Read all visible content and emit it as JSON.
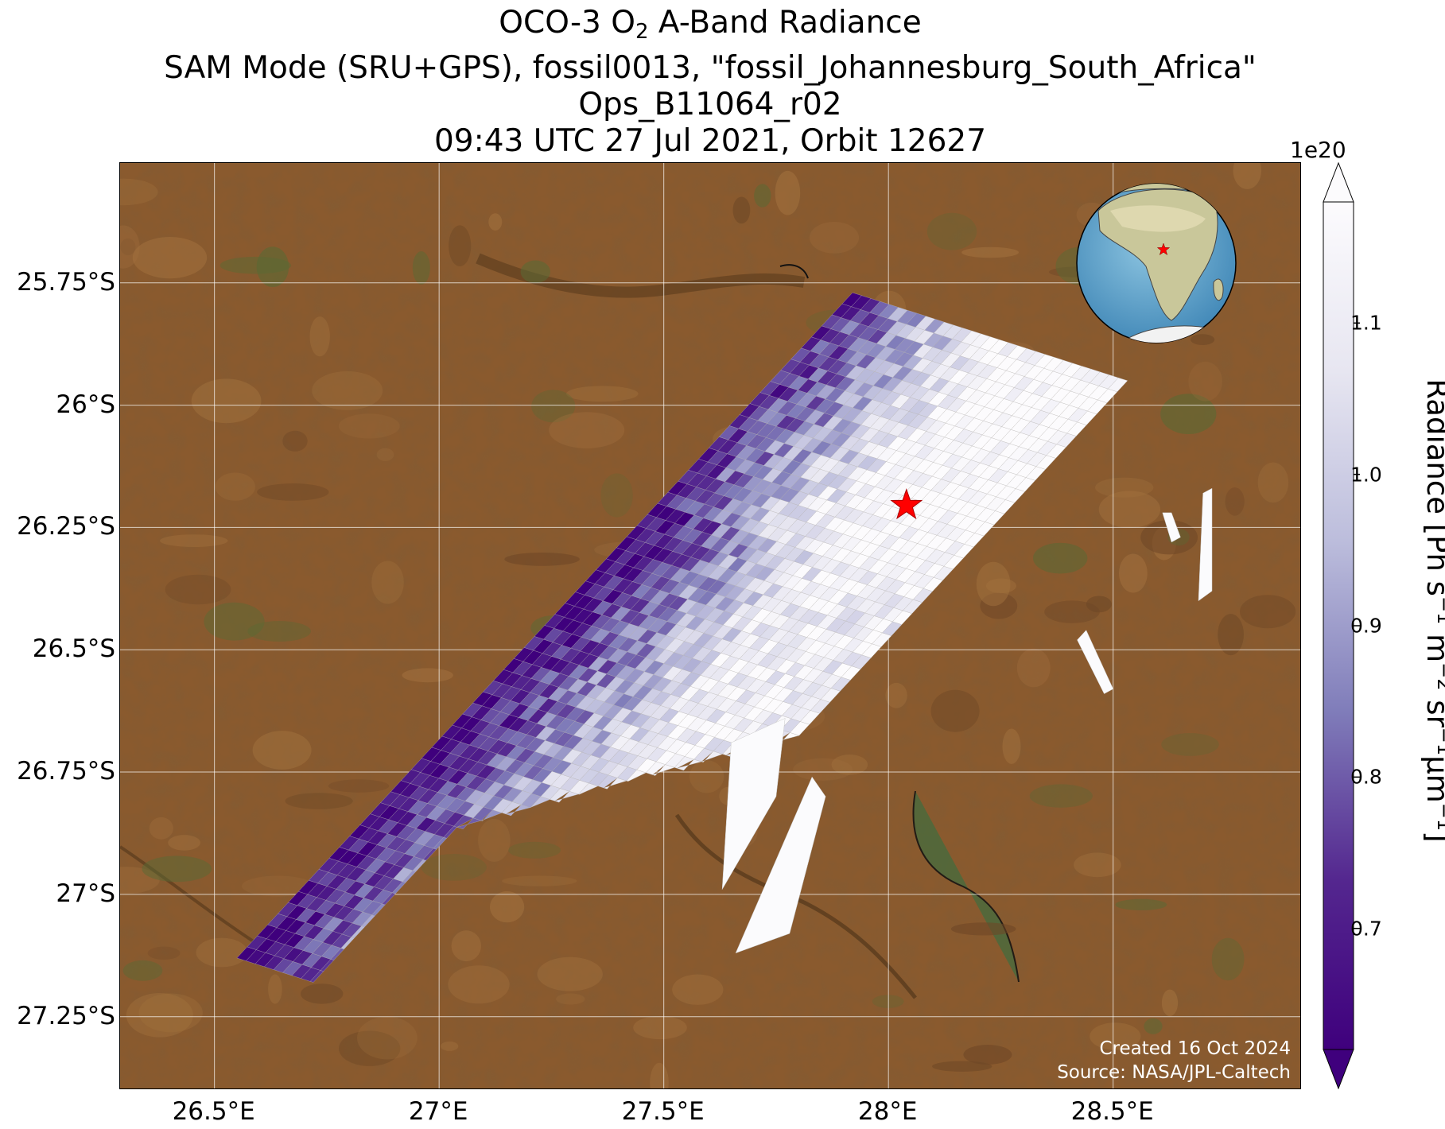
{
  "title": {
    "line1_prefix": "OCO-3 O",
    "line1_sub": "2",
    "line1_suffix": " A-Band Radiance",
    "line2": "SAM Mode (SRU+GPS), fossil0013, \"fossil_Johannesburg_South_Africa\"",
    "line3": "Ops_B11064_r02",
    "line4": "09:43 UTC 27 Jul 2021, Orbit 12627"
  },
  "map": {
    "lon_range": [
      26.29,
      28.92
    ],
    "lat_range": [
      -27.4,
      -25.505
    ],
    "lat_ticks": [
      {
        "value": -25.75,
        "label": "25.75°S"
      },
      {
        "value": -26.0,
        "label": "26°S"
      },
      {
        "value": -26.25,
        "label": "26.25°S"
      },
      {
        "value": -26.5,
        "label": "26.5°S"
      },
      {
        "value": -26.75,
        "label": "26.75°S"
      },
      {
        "value": -27.0,
        "label": "27°S"
      },
      {
        "value": -27.25,
        "label": "27.25°S"
      }
    ],
    "lon_ticks": [
      {
        "value": 26.5,
        "label": "26.5°E"
      },
      {
        "value": 27.0,
        "label": "27°E"
      },
      {
        "value": 27.5,
        "label": "27.5°E"
      },
      {
        "value": 28.0,
        "label": "28°E"
      },
      {
        "value": 28.5,
        "label": "28.5°E"
      }
    ],
    "target": {
      "lon": 28.04,
      "lat": -26.205,
      "marker": "red-star",
      "color": "#ff0000"
    },
    "basemap_colors": {
      "land": "#8a5a2e",
      "land_dark": "#6e4726",
      "land_light": "#a2713e",
      "vegetation": "#5a6a34",
      "water": "#4c6a3c"
    }
  },
  "colorbar": {
    "label_main": "Radiance [Ph s",
    "label_sup1": "−1",
    "label_mid1": " m",
    "label_sup2": "−2",
    "label_mid2": " sr",
    "label_sup3": "−1",
    "label_mid3": "μm",
    "label_sup4": "−1",
    "label_end": "]",
    "offset_text": "1e20",
    "min": 0.62,
    "max": 1.18,
    "ticks": [
      {
        "value": 0.7,
        "label": "0.7"
      },
      {
        "value": 0.8,
        "label": "0.8"
      },
      {
        "value": 0.9,
        "label": "0.9"
      },
      {
        "value": 1.0,
        "label": "1.0"
      },
      {
        "value": 1.1,
        "label": "1.1"
      }
    ],
    "colormap": "Purples_r",
    "extend": "both"
  },
  "inset_globe": {
    "region": "Africa",
    "marker": "red-star"
  },
  "credits": {
    "created": "Created 16 Oct 2024",
    "source": "Source: NASA/JPL-Caltech"
  }
}
